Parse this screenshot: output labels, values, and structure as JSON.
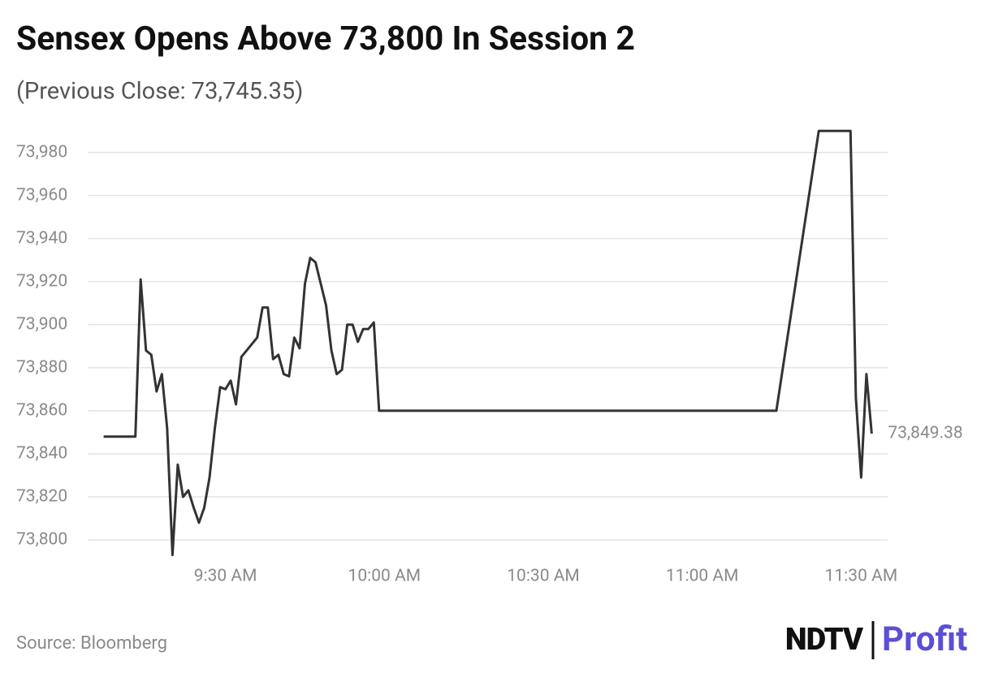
{
  "chart_data": {
    "type": "line",
    "title": "Sensex Opens Above 73,800 In Session 2",
    "subtitle": "(Previous Close: 73,745.35)",
    "source": "Source: Bloomberg",
    "brand": [
      "NDTV",
      "Profit"
    ],
    "x": [
      "9:07 AM",
      "9:08 AM",
      "9:13 AM",
      "9:14 AM",
      "9:15 AM",
      "9:16 AM",
      "9:17 AM",
      "9:18 AM",
      "9:19 AM",
      "9:20 AM",
      "9:21 AM",
      "9:22 AM",
      "9:23 AM",
      "9:24 AM",
      "9:25 AM",
      "9:26 AM",
      "9:27 AM",
      "9:28 AM",
      "9:29 AM",
      "9:30 AM",
      "9:31 AM",
      "9:32 AM",
      "9:33 AM",
      "9:34 AM",
      "9:35 AM",
      "9:36 AM",
      "9:37 AM",
      "9:38 AM",
      "9:39 AM",
      "9:40 AM",
      "9:41 AM",
      "9:42 AM",
      "9:43 AM",
      "9:44 AM",
      "9:45 AM",
      "9:46 AM",
      "9:47 AM",
      "9:48 AM",
      "9:49 AM",
      "9:50 AM",
      "9:51 AM",
      "9:52 AM",
      "9:53 AM",
      "9:54 AM",
      "9:55 AM",
      "9:56 AM",
      "9:57 AM",
      "9:58 AM",
      "9:59 AM",
      "11:14 AM",
      "11:22 AM",
      "11:28 AM",
      "11:29 AM",
      "11:30 AM",
      "11:31 AM",
      "11:32 AM"
    ],
    "series": [
      {
        "name": "Sensex",
        "color": "#333333",
        "values": [
          73848,
          73848,
          73848,
          73921,
          73888,
          73886,
          73869,
          73877,
          73852,
          73793,
          73835,
          73820,
          73823,
          73815,
          73808,
          73815,
          73829,
          73852,
          73871,
          73870,
          73874,
          73863,
          73885,
          73888,
          73891,
          73894,
          73908,
          73908,
          73884,
          73886,
          73877,
          73876,
          73894,
          73889,
          73919,
          73931,
          73929,
          73919,
          73909,
          73888,
          73877,
          73879,
          73900,
          73900,
          73892,
          73898,
          73898,
          73901,
          73860,
          73860,
          73990,
          73990,
          73866,
          73829,
          73877,
          73849.38
        ],
        "value_labels": [
          null,
          null,
          null,
          null,
          null,
          null,
          null,
          null,
          null,
          null,
          null,
          null,
          null,
          null,
          null,
          null,
          null,
          null,
          null,
          null,
          null,
          null,
          null,
          null,
          null,
          null,
          null,
          null,
          null,
          null,
          null,
          null,
          null,
          null,
          null,
          null,
          null,
          null,
          null,
          null,
          null,
          null,
          null,
          null,
          null,
          null,
          null,
          null,
          null,
          null,
          null,
          null,
          null,
          null,
          null,
          "73,849.38"
        ]
      }
    ],
    "xlim": [
      "9:04 AM",
      "11:35 AM"
    ],
    "xticks": [
      "9:30 AM",
      "10:00 AM",
      "10:30 AM",
      "11:00 AM",
      "11:30 AM"
    ],
    "ylim": [
      73790,
      73995
    ],
    "yticks": [
      {
        "value": 73800,
        "label": "73,800"
      },
      {
        "value": 73820,
        "label": "73,820"
      },
      {
        "value": 73840,
        "label": "73,840"
      },
      {
        "value": 73860,
        "label": "73,860"
      },
      {
        "value": 73880,
        "label": "73,880"
      },
      {
        "value": 73900,
        "label": "73,900"
      },
      {
        "value": 73920,
        "label": "73,920"
      },
      {
        "value": 73940,
        "label": "73,940"
      },
      {
        "value": 73960,
        "label": "73,960"
      },
      {
        "value": 73980,
        "label": "73,980"
      }
    ],
    "grid": true
  }
}
